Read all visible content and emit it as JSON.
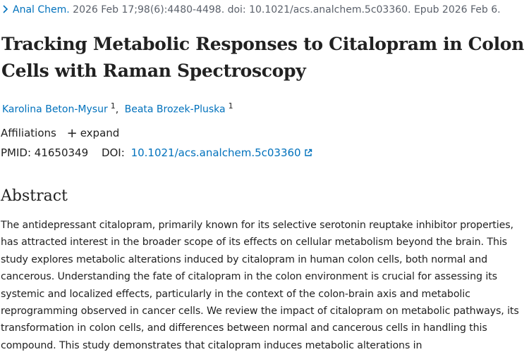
{
  "citation": {
    "journal": "Anal Chem.",
    "details": "2026 Feb 17;98(6):4480-4498. doi: 10.1021/acs.analchem.5c03360. Epub 2026 Feb 6."
  },
  "article": {
    "title": "Tracking Metabolic Responses to Citalopram in Colon Cells with Raman Spectroscopy"
  },
  "authors": [
    {
      "name": "Karolina Beton-Mysur",
      "affiliation_ref": "1"
    },
    {
      "name": "Beata Brozek-Pluska",
      "affiliation_ref": "1"
    }
  ],
  "affiliations": {
    "label": "Affiliations",
    "expand_label": "expand"
  },
  "identifiers": {
    "pmid_label": "PMID:",
    "pmid": "41650349",
    "doi_label": "DOI:",
    "doi": "10.1021/acs.analchem.5c03360"
  },
  "abstract": {
    "heading": "Abstract",
    "text": "The antidepressant citalopram, primarily known for its selective serotonin reuptake inhibitor properties, has attracted interest in the broader scope of its effects on cellular metabolism beyond the brain. This study explores metabolic alterations induced by citalopram in human colon cells, both normal and cancerous. Understanding the fate of citalopram in the colon environment is crucial for assessing its systemic and localized effects, particularly in the context of the colon-brain axis and metabolic reprogramming observed in cancer cells. We review the impact of citalopram on metabolic pathways, its transformation in colon cells, and differences between normal and cancerous cells in handling this compound. This study demonstrates that citalopram induces metabolic alterations in"
  },
  "icons": {
    "citation_toggle": "chevron-right-icon",
    "expand": "plus-icon",
    "external_link": "external-link-icon"
  },
  "colors": {
    "link": "#0071bc",
    "text": "#212121",
    "muted": "#5b616b"
  }
}
